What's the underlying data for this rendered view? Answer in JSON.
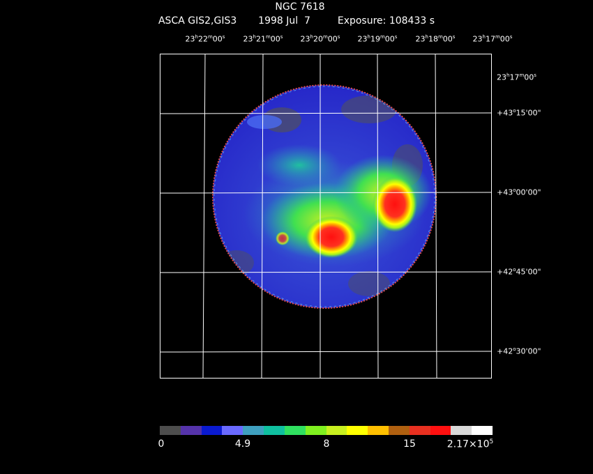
{
  "header": {
    "object": "NGC 7618",
    "instrument": "ASCA GIS2,GIS3",
    "date": "1998 Jul  7",
    "exposure": "Exposure: 108433 s"
  },
  "ra_ticks": [
    {
      "h": "23",
      "m": "22",
      "s": "00"
    },
    {
      "h": "23",
      "m": "21",
      "s": "00"
    },
    {
      "h": "23",
      "m": "20",
      "s": "00"
    },
    {
      "h": "23",
      "m": "19",
      "s": "00"
    },
    {
      "h": "23",
      "m": "18",
      "s": "00"
    },
    {
      "h": "23",
      "m": "17",
      "s": "00"
    }
  ],
  "ra_right": {
    "h": "23",
    "m": "17",
    "s": "00"
  },
  "dec_ticks": [
    {
      "d": "+43",
      "m": "15",
      "s": "00"
    },
    {
      "d": "+43",
      "m": "00",
      "s": "00"
    },
    {
      "d": "+42",
      "m": "45",
      "s": "00"
    },
    {
      "d": "+42",
      "m": "30",
      "s": "00"
    }
  ],
  "colorbar": {
    "colors": [
      "#4d4d4d",
      "#5533aa",
      "#0a1ad0",
      "#6a6aff",
      "#3fa0c0",
      "#10c0a0",
      "#30e060",
      "#80f020",
      "#c8f020",
      "#ffff00",
      "#ffc000",
      "#b06010",
      "#e83020",
      "#ff1010",
      "#d9d9d9",
      "#ffffff"
    ],
    "labels": [
      "0",
      "4.9",
      "8",
      "15"
    ],
    "max_mantissa": "2.17×10",
    "max_exp": "5"
  },
  "image": {
    "description_colors": {
      "background": "#2020d0",
      "edge": "#ff3030"
    }
  }
}
